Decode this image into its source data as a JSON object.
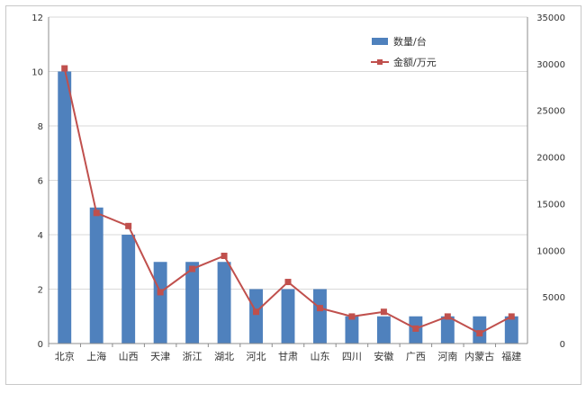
{
  "chart_data": {
    "type": "bar+line",
    "categories": [
      "北京",
      "上海",
      "山西",
      "天津",
      "浙江",
      "湖北",
      "河北",
      "甘肃",
      "山东",
      "四川",
      "安徽",
      "广西",
      "河南",
      "内蒙古",
      "福建"
    ],
    "series": [
      {
        "name": "数量/台",
        "type": "bar",
        "axis": "left",
        "color": "#4f81bd",
        "values": [
          10,
          5,
          4,
          3,
          3,
          3,
          2,
          2,
          2,
          1,
          1,
          1,
          1,
          1,
          1
        ]
      },
      {
        "name": "金额/万元",
        "type": "line",
        "axis": "right",
        "color": "#c0504d",
        "values": [
          29500,
          14000,
          12600,
          5500,
          8000,
          9400,
          3400,
          6600,
          3800,
          2900,
          3400,
          1600,
          2900,
          1100,
          2900
        ]
      }
    ],
    "y_left": {
      "min": 0,
      "max": 12,
      "ticks": [
        0,
        2,
        4,
        6,
        8,
        10,
        12
      ]
    },
    "y_right": {
      "min": 0,
      "max": 35000,
      "ticks": [
        0,
        5000,
        10000,
        15000,
        20000,
        25000,
        30000,
        35000
      ]
    },
    "grid": true,
    "legend": "top-right"
  }
}
